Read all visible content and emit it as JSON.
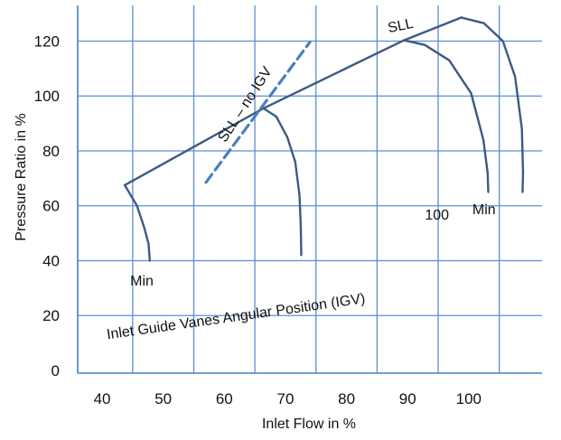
{
  "chart_data": {
    "type": "line",
    "title": "",
    "xlabel": "Inlet Flow in %",
    "ylabel": "Pressure Ratio in %",
    "xlim": [
      36,
      112
    ],
    "ylim": [
      -1,
      133
    ],
    "x_ticks": [
      40,
      50,
      60,
      70,
      80,
      90,
      100
    ],
    "y_ticks": [
      0,
      20,
      40,
      60,
      80,
      100,
      120
    ],
    "grid": true,
    "colors": {
      "curve": "#3d5a82",
      "surge_no_igv": "#4a7fc1",
      "grid": "#5b8fd0",
      "axis": "#4a7fc1"
    },
    "series": [
      {
        "name": "SLL",
        "style": "solid",
        "points": [
          [
            43.7,
            67.5
          ],
          [
            66.4,
            95.5
          ],
          [
            89.4,
            120.3
          ],
          [
            98.8,
            128.6
          ]
        ]
      },
      {
        "name": "",
        "style": "solid",
        "points": [
          [
            43.7,
            67.5
          ],
          [
            45.7,
            60
          ],
          [
            46.9,
            52
          ],
          [
            47.6,
            46
          ],
          [
            47.8,
            40
          ]
        ]
      },
      {
        "name": "",
        "style": "solid",
        "points": [
          [
            66.4,
            95.5
          ],
          [
            68.5,
            92.5
          ],
          [
            70.3,
            85
          ],
          [
            71.6,
            76
          ],
          [
            72.3,
            64
          ],
          [
            72.5,
            53
          ],
          [
            72.6,
            42
          ]
        ]
      },
      {
        "name": "",
        "style": "solid",
        "points": [
          [
            89.4,
            120.3
          ],
          [
            92.8,
            118.6
          ],
          [
            96.8,
            113
          ],
          [
            100.4,
            101
          ],
          [
            102.4,
            84
          ],
          [
            103.1,
            72
          ],
          [
            103.2,
            65
          ]
        ]
      },
      {
        "name": "",
        "style": "solid",
        "points": [
          [
            98.8,
            128.6
          ],
          [
            102.5,
            126.5
          ],
          [
            105.6,
            120
          ],
          [
            107.6,
            107
          ],
          [
            108.7,
            88
          ],
          [
            108.9,
            72
          ],
          [
            108.8,
            65
          ]
        ]
      },
      {
        "name": "SLL – no IGV",
        "style": "dashed",
        "points": [
          [
            57,
            68.5
          ],
          [
            74,
            119.6
          ]
        ]
      }
    ],
    "annotations": [
      {
        "text": "SLL",
        "x": 89,
        "y": 124
      },
      {
        "text": "SLL – no IGV",
        "x": 64,
        "y": 96
      },
      {
        "text": "Min",
        "x": 46.5,
        "y": 31
      },
      {
        "text": "100",
        "x": 94.8,
        "y": 55
      },
      {
        "text": "Min",
        "x": 102.5,
        "y": 57
      },
      {
        "text": "Inlet Guide Vanes Angular Position (IGV)",
        "x": 62,
        "y": 18
      }
    ]
  }
}
